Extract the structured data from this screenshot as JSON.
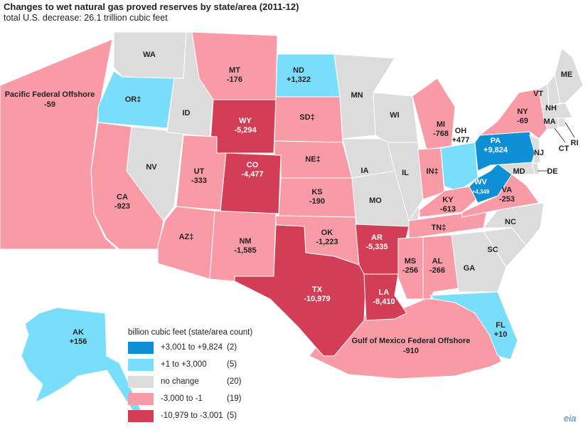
{
  "title": "Changes to wet natural gas proved reserves by state/area (2011-12)",
  "subtitle": "total U.S. decrease: 26.1 trillion cubic feet",
  "colors": {
    "pos_large": "#0f8fd6",
    "pos_small": "#79defb",
    "zero": "#dcdcdc",
    "neg_small": "#f99aa7",
    "neg_large": "#d33e56",
    "border": "#ffffff",
    "water": "#2a8fb0"
  },
  "legend": {
    "title": "billion cubic feet (state/area count)",
    "items": [
      {
        "range": "+3,001 to +9,824",
        "count": "(2)",
        "color": "#0f8fd6"
      },
      {
        "range": "+1 to +3,000",
        "count": "(5)",
        "color": "#79defb"
      },
      {
        "range": "no change",
        "count": "(20)",
        "color": "#dcdcdc"
      },
      {
        "range": "-3,000 to -1",
        "count": "(19)",
        "color": "#f99aa7"
      },
      {
        "range": "-10,979 to -3,001",
        "count": "(5)",
        "color": "#d33e56"
      }
    ]
  },
  "areas": {
    "WA": {
      "abbr": "WA",
      "value": ""
    },
    "OR": {
      "abbr": "OR",
      "value": "",
      "note": "‡"
    },
    "CA": {
      "abbr": "CA",
      "value": "-923"
    },
    "NV": {
      "abbr": "NV",
      "value": ""
    },
    "ID": {
      "abbr": "ID",
      "value": ""
    },
    "MT": {
      "abbr": "MT",
      "value": "-176"
    },
    "WY": {
      "abbr": "WY",
      "value": "-5,294"
    },
    "UT": {
      "abbr": "UT",
      "value": "-333"
    },
    "CO": {
      "abbr": "CO",
      "value": "-4,477"
    },
    "AZ": {
      "abbr": "AZ",
      "value": "",
      "note": "‡"
    },
    "NM": {
      "abbr": "NM",
      "value": "-1,585"
    },
    "ND": {
      "abbr": "ND",
      "value": "+1,322"
    },
    "SD": {
      "abbr": "SD",
      "value": "",
      "note": "‡"
    },
    "NE": {
      "abbr": "NE",
      "value": "",
      "note": "‡"
    },
    "KS": {
      "abbr": "KS",
      "value": "-190"
    },
    "OK": {
      "abbr": "OK",
      "value": "-1,223"
    },
    "TX": {
      "abbr": "TX",
      "value": "-10,979"
    },
    "MN": {
      "abbr": "MN",
      "value": ""
    },
    "IA": {
      "abbr": "IA",
      "value": ""
    },
    "MO": {
      "abbr": "MO",
      "value": ""
    },
    "AR": {
      "abbr": "AR",
      "value": "-5,335"
    },
    "LA": {
      "abbr": "LA",
      "value": "-8,410"
    },
    "WI": {
      "abbr": "WI",
      "value": ""
    },
    "IL": {
      "abbr": "IL",
      "value": ""
    },
    "MI": {
      "abbr": "MI",
      "value": "-768"
    },
    "IN": {
      "abbr": "IN",
      "value": "",
      "note": "‡"
    },
    "OH": {
      "abbr": "OH",
      "value": "+477"
    },
    "KY": {
      "abbr": "KY",
      "value": "-613"
    },
    "TN": {
      "abbr": "TN",
      "value": "",
      "note": "‡"
    },
    "MS": {
      "abbr": "MS",
      "value": "-256"
    },
    "AL": {
      "abbr": "AL",
      "value": "-266"
    },
    "GA": {
      "abbr": "GA",
      "value": ""
    },
    "FL": {
      "abbr": "FL",
      "value": "+10"
    },
    "SC": {
      "abbr": "SC",
      "value": ""
    },
    "NC": {
      "abbr": "NC",
      "value": ""
    },
    "VA": {
      "abbr": "VA",
      "value": "-253"
    },
    "WV": {
      "abbr": "WV",
      "value": "+4,349"
    },
    "PA": {
      "abbr": "PA",
      "value": "+9,824"
    },
    "NY": {
      "abbr": "NY",
      "value": "-69"
    },
    "VT": {
      "abbr": "VT",
      "value": ""
    },
    "NH": {
      "abbr": "NH",
      "value": ""
    },
    "ME": {
      "abbr": "ME",
      "value": ""
    },
    "MA": {
      "abbr": "MA",
      "value": ""
    },
    "RI": {
      "abbr": "RI",
      "value": ""
    },
    "CT": {
      "abbr": "CT",
      "value": ""
    },
    "NJ": {
      "abbr": "NJ",
      "value": ""
    },
    "MD": {
      "abbr": "MD",
      "value": ""
    },
    "DE": {
      "abbr": "DE",
      "value": ""
    },
    "AK": {
      "abbr": "AK",
      "value": "+156"
    }
  },
  "offshore": {
    "pacific": {
      "label": "Pacific Federal Offshore",
      "value": "-59"
    },
    "gulf": {
      "label": "Gulf of Mexico Federal Offshore",
      "value": "-910"
    }
  },
  "logo": "eia"
}
